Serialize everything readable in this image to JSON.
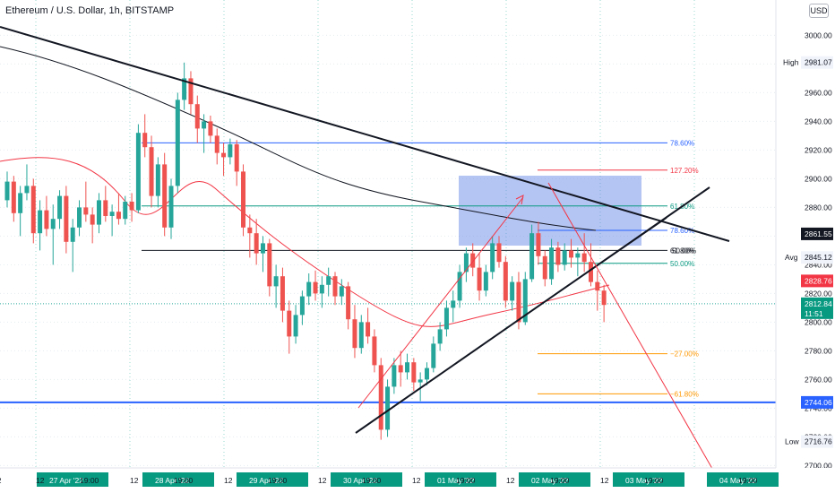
{
  "header": {
    "title": "Ethereum / U.S. Dollar, 1h, BITSTAMP",
    "currency": "USD"
  },
  "colors": {
    "up": "#26a69a",
    "down": "#ef5350",
    "fib_blue": "#2962ff",
    "fib_red": "#f23645",
    "fib_green": "#089981",
    "fib_orange": "#ff9800",
    "zone": "#5b7ee5",
    "support": "#2962ff",
    "ma_red": "#f23645",
    "ma_dark": "#131722"
  },
  "price_axis": {
    "ticks": [
      3000,
      2980,
      2960,
      2940,
      2920,
      2900,
      2880,
      2860,
      2840,
      2820,
      2800,
      2780,
      2760,
      2740,
      2720,
      2700
    ],
    "top_label": "3000.00",
    "labels": {
      "high": {
        "text": "High",
        "value": "2981.07"
      },
      "current_ma": {
        "value": "2861.55"
      },
      "avg": {
        "text": "Avg",
        "value": "2845.12"
      },
      "red_tag": {
        "value": "2828.76"
      },
      "last": {
        "value": "2812.84",
        "countdown": "11:51"
      },
      "support": {
        "value": "2744.06"
      },
      "low": {
        "text": "Low",
        "value": "2716.76"
      }
    }
  },
  "time_axis": {
    "labels": [
      "12",
      "27 Apr '22",
      "19:00",
      "12",
      "28 Apr '22",
      "19:00",
      "12",
      "29 Apr '22",
      "19:00",
      "12",
      "30 Apr '22",
      "19:00",
      "12",
      "01 May '22",
      "19:00",
      "12",
      "02 May '22",
      "19:00",
      "12",
      "03 May '22",
      "19:00",
      "12",
      "04 May '22",
      "19:00"
    ]
  },
  "fib_labels": {
    "f7860_top": "78.60%",
    "f1272": "127.20%",
    "f618_top": "61.80%",
    "f7860_mid": "78.60%",
    "f500_a": "50.00%",
    "f618_mid": "61.80%",
    "f500_b": "50.00%",
    "fm27": "−27.00%",
    "fm618": "−61.80%"
  },
  "chart_data": {
    "type": "candlestick",
    "title": "Ethereum / U.S. Dollar, 1h, BITSTAMP",
    "ylim": [
      2690,
      3010
    ],
    "x_range": [
      "27 Apr '22",
      "04 May '22 19:00"
    ],
    "high": 2981.07,
    "low": 2716.76,
    "last": 2812.84,
    "support_level": 2744.06,
    "moving_averages": [
      {
        "name": "MA (dark)",
        "last": 2861.55
      },
      {
        "name": "MA (red)",
        "last": 2828.76
      }
    ],
    "avg": 2845.12,
    "fib_levels": [
      {
        "label": "78.60%",
        "price": 2925
      },
      {
        "label": "127.20%",
        "price": 2906
      },
      {
        "label": "61.80%",
        "price": 2881
      },
      {
        "label": "78.60%",
        "price": 2864
      },
      {
        "label": "61.80%",
        "price": 2850
      },
      {
        "label": "50.00%",
        "price": 2850
      },
      {
        "label": "50.00%",
        "price": 2841
      },
      {
        "label": "−27.00%",
        "price": 2778
      },
      {
        "label": "−61.80%",
        "price": 2750
      }
    ],
    "candles": [
      [
        2885,
        2905,
        2880,
        2898
      ],
      [
        2898,
        2902,
        2870,
        2876
      ],
      [
        2876,
        2895,
        2860,
        2890
      ],
      [
        2890,
        2910,
        2885,
        2895
      ],
      [
        2895,
        2900,
        2855,
        2862
      ],
      [
        2862,
        2885,
        2850,
        2878
      ],
      [
        2878,
        2888,
        2860,
        2865
      ],
      [
        2865,
        2882,
        2840,
        2872
      ],
      [
        2872,
        2892,
        2865,
        2888
      ],
      [
        2888,
        2895,
        2848,
        2856
      ],
      [
        2856,
        2872,
        2835,
        2866
      ],
      [
        2866,
        2885,
        2860,
        2880
      ],
      [
        2880,
        2898,
        2870,
        2875
      ],
      [
        2875,
        2880,
        2855,
        2868
      ],
      [
        2868,
        2890,
        2862,
        2885
      ],
      [
        2885,
        2895,
        2870,
        2874
      ],
      [
        2874,
        2882,
        2860,
        2877
      ],
      [
        2877,
        2890,
        2868,
        2872
      ],
      [
        2872,
        2888,
        2868,
        2884
      ],
      [
        2884,
        2890,
        2870,
        2878
      ],
      [
        2878,
        2938,
        2876,
        2932
      ],
      [
        2932,
        2945,
        2915,
        2922
      ],
      [
        2922,
        2930,
        2880,
        2888
      ],
      [
        2888,
        2915,
        2880,
        2910
      ],
      [
        2910,
        2918,
        2860,
        2866
      ],
      [
        2866,
        2900,
        2858,
        2895
      ],
      [
        2895,
        2960,
        2890,
        2955
      ],
      [
        2955,
        2981,
        2948,
        2970
      ],
      [
        2970,
        2975,
        2945,
        2952
      ],
      [
        2952,
        2958,
        2925,
        2935
      ],
      [
        2935,
        2945,
        2918,
        2940
      ],
      [
        2940,
        2944,
        2925,
        2930
      ],
      [
        2930,
        2935,
        2910,
        2918
      ],
      [
        2918,
        2925,
        2902,
        2915
      ],
      [
        2915,
        2928,
        2910,
        2924
      ],
      [
        2924,
        2927,
        2895,
        2905
      ],
      [
        2905,
        2910,
        2860,
        2866
      ],
      [
        2866,
        2875,
        2845,
        2862
      ],
      [
        2862,
        2872,
        2840,
        2848
      ],
      [
        2848,
        2860,
        2835,
        2855
      ],
      [
        2855,
        2858,
        2818,
        2825
      ],
      [
        2825,
        2840,
        2810,
        2832
      ],
      [
        2832,
        2838,
        2800,
        2808
      ],
      [
        2808,
        2815,
        2778,
        2790
      ],
      [
        2790,
        2812,
        2785,
        2805
      ],
      [
        2805,
        2822,
        2798,
        2818
      ],
      [
        2818,
        2834,
        2812,
        2828
      ],
      [
        2828,
        2836,
        2815,
        2820
      ],
      [
        2820,
        2832,
        2810,
        2826
      ],
      [
        2826,
        2838,
        2818,
        2832
      ],
      [
        2832,
        2835,
        2812,
        2818
      ],
      [
        2818,
        2830,
        2812,
        2825
      ],
      [
        2825,
        2828,
        2795,
        2802
      ],
      [
        2802,
        2812,
        2775,
        2782
      ],
      [
        2782,
        2805,
        2778,
        2800
      ],
      [
        2800,
        2810,
        2785,
        2790
      ],
      [
        2790,
        2795,
        2765,
        2770
      ],
      [
        2770,
        2775,
        2718,
        2725
      ],
      [
        2725,
        2760,
        2720,
        2755
      ],
      [
        2755,
        2775,
        2750,
        2770
      ],
      [
        2770,
        2780,
        2755,
        2765
      ],
      [
        2765,
        2778,
        2760,
        2772
      ],
      [
        2772,
        2775,
        2752,
        2758
      ],
      [
        2758,
        2765,
        2745,
        2760
      ],
      [
        2760,
        2772,
        2756,
        2768
      ],
      [
        2768,
        2790,
        2765,
        2785
      ],
      [
        2785,
        2800,
        2780,
        2795
      ],
      [
        2795,
        2815,
        2790,
        2810
      ],
      [
        2810,
        2822,
        2800,
        2815
      ],
      [
        2815,
        2840,
        2810,
        2835
      ],
      [
        2835,
        2852,
        2828,
        2848
      ],
      [
        2848,
        2855,
        2832,
        2838
      ],
      [
        2838,
        2848,
        2815,
        2822
      ],
      [
        2822,
        2840,
        2818,
        2835
      ],
      [
        2835,
        2860,
        2830,
        2855
      ],
      [
        2855,
        2860,
        2838,
        2842
      ],
      [
        2842,
        2846,
        2810,
        2815
      ],
      [
        2815,
        2832,
        2808,
        2828
      ],
      [
        2828,
        2835,
        2795,
        2800
      ],
      [
        2800,
        2835,
        2798,
        2830
      ],
      [
        2830,
        2868,
        2828,
        2862
      ],
      [
        2862,
        2870,
        2840,
        2846
      ],
      [
        2846,
        2850,
        2825,
        2830
      ],
      [
        2830,
        2858,
        2826,
        2852
      ],
      [
        2852,
        2856,
        2835,
        2840
      ],
      [
        2840,
        2855,
        2836,
        2850
      ],
      [
        2850,
        2858,
        2838,
        2845
      ],
      [
        2845,
        2852,
        2832,
        2848
      ],
      [
        2848,
        2862,
        2835,
        2842
      ],
      [
        2842,
        2855,
        2825,
        2828
      ],
      [
        2828,
        2836,
        2808,
        2822
      ],
      [
        2822,
        2826,
        2800,
        2812
      ]
    ]
  }
}
